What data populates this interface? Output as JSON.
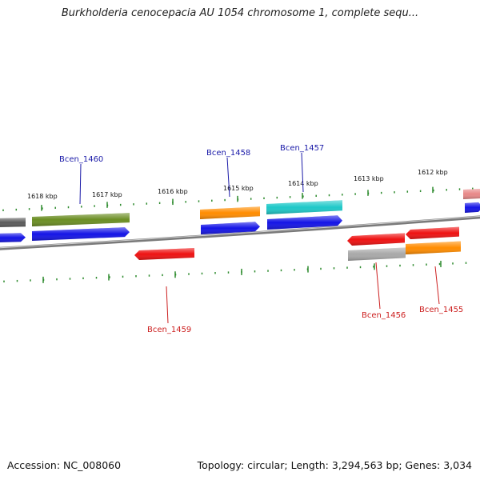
{
  "title": "Burkholderia cenocepacia AU 1054 chromosome 1, complete sequ...",
  "footer": {
    "accession": "Accession: NC_008060",
    "summary": "Topology: circular; Length: 3,294,563 bp; Genes: 3,034"
  },
  "colors": {
    "backbone": "#7a7a7a",
    "tick": "#2e8b2e",
    "forward_label": "#1a1aa8",
    "reverse_label": "#cc1f1f",
    "blue": "#1414e6",
    "red": "#ee1111",
    "orange": "#ff8c00",
    "cyan": "#1ec8c8",
    "olive": "#6b8e23",
    "gray": "#a8a8a8",
    "darkgray": "#5a5a5a",
    "pink": "#e88888"
  },
  "scale_labels": [
    "1618 kbp",
    "1617 kbp",
    "1616 kbp",
    "1615 kbp",
    "1614 kbp",
    "1613 kbp",
    "1612 kbp"
  ],
  "gene_labels": [
    {
      "text": "Bcen_1460",
      "strand": "forward"
    },
    {
      "text": "Bcen_1458",
      "strand": "forward"
    },
    {
      "text": "Bcen_1457",
      "strand": "forward"
    },
    {
      "text": "Bcen_1459",
      "strand": "reverse"
    },
    {
      "text": "Bcen_1456",
      "strand": "reverse"
    },
    {
      "text": "Bcen_1455",
      "strand": "reverse"
    }
  ],
  "features": [
    {
      "color": "darkgray",
      "direction": "none"
    },
    {
      "color": "olive",
      "direction": "none"
    },
    {
      "color": "orange",
      "direction": "none"
    },
    {
      "color": "cyan",
      "direction": "none"
    },
    {
      "color": "pink",
      "direction": "none"
    },
    {
      "color": "blue",
      "direction": "right"
    },
    {
      "color": "blue",
      "direction": "right"
    },
    {
      "color": "blue",
      "direction": "right"
    },
    {
      "color": "blue",
      "direction": "right"
    },
    {
      "color": "blue",
      "direction": "right"
    },
    {
      "color": "red",
      "direction": "left"
    },
    {
      "color": "red",
      "direction": "left"
    },
    {
      "color": "red",
      "direction": "left"
    },
    {
      "color": "gray",
      "direction": "none"
    },
    {
      "color": "orange",
      "direction": "none"
    }
  ]
}
